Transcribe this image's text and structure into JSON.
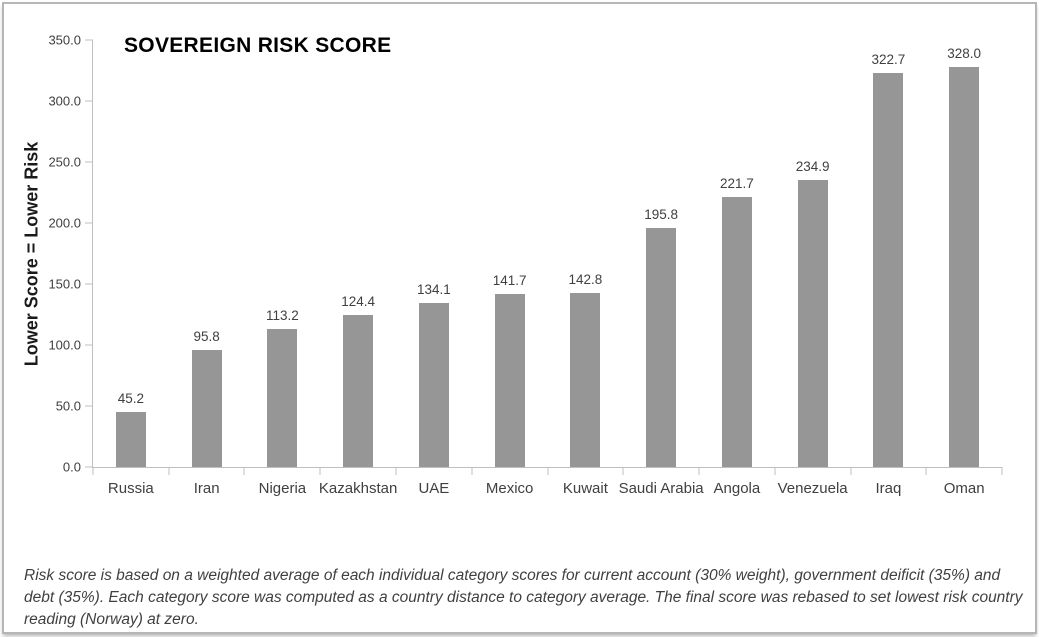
{
  "chart_data": {
    "type": "bar",
    "title": "SOVEREIGN RISK SCORE",
    "ylabel": "Lower Score = Lower Risk",
    "xlabel": "",
    "categories": [
      "Russia",
      "Iran",
      "Nigeria",
      "Kazakhstan",
      "UAE",
      "Mexico",
      "Kuwait",
      "Saudi Arabia",
      "Angola",
      "Venezuela",
      "Iraq",
      "Oman"
    ],
    "values": [
      45.2,
      95.8,
      113.2,
      124.4,
      134.1,
      141.7,
      142.8,
      195.8,
      221.7,
      234.9,
      322.7,
      328.0
    ],
    "ylim": [
      0,
      350
    ],
    "ytick_step": 50,
    "ytick_labels": [
      "0.0",
      "50.0",
      "100.0",
      "150.0",
      "200.0",
      "250.0",
      "300.0",
      "350.0"
    ],
    "grid": false,
    "legend": "none",
    "bar_color": "#969696",
    "axis_color": "#bfbfbf",
    "label_color": "#404040"
  },
  "footnote": {
    "lines": [
      "Risk score is based on a weighted average of each individual category scores for current account (30% weight), government deificit (35%) and",
      "debt (35%). Each category score was computed as a country distance to category average. The final score was rebased to set lowest risk country",
      "reading (Norway) at zero."
    ]
  }
}
